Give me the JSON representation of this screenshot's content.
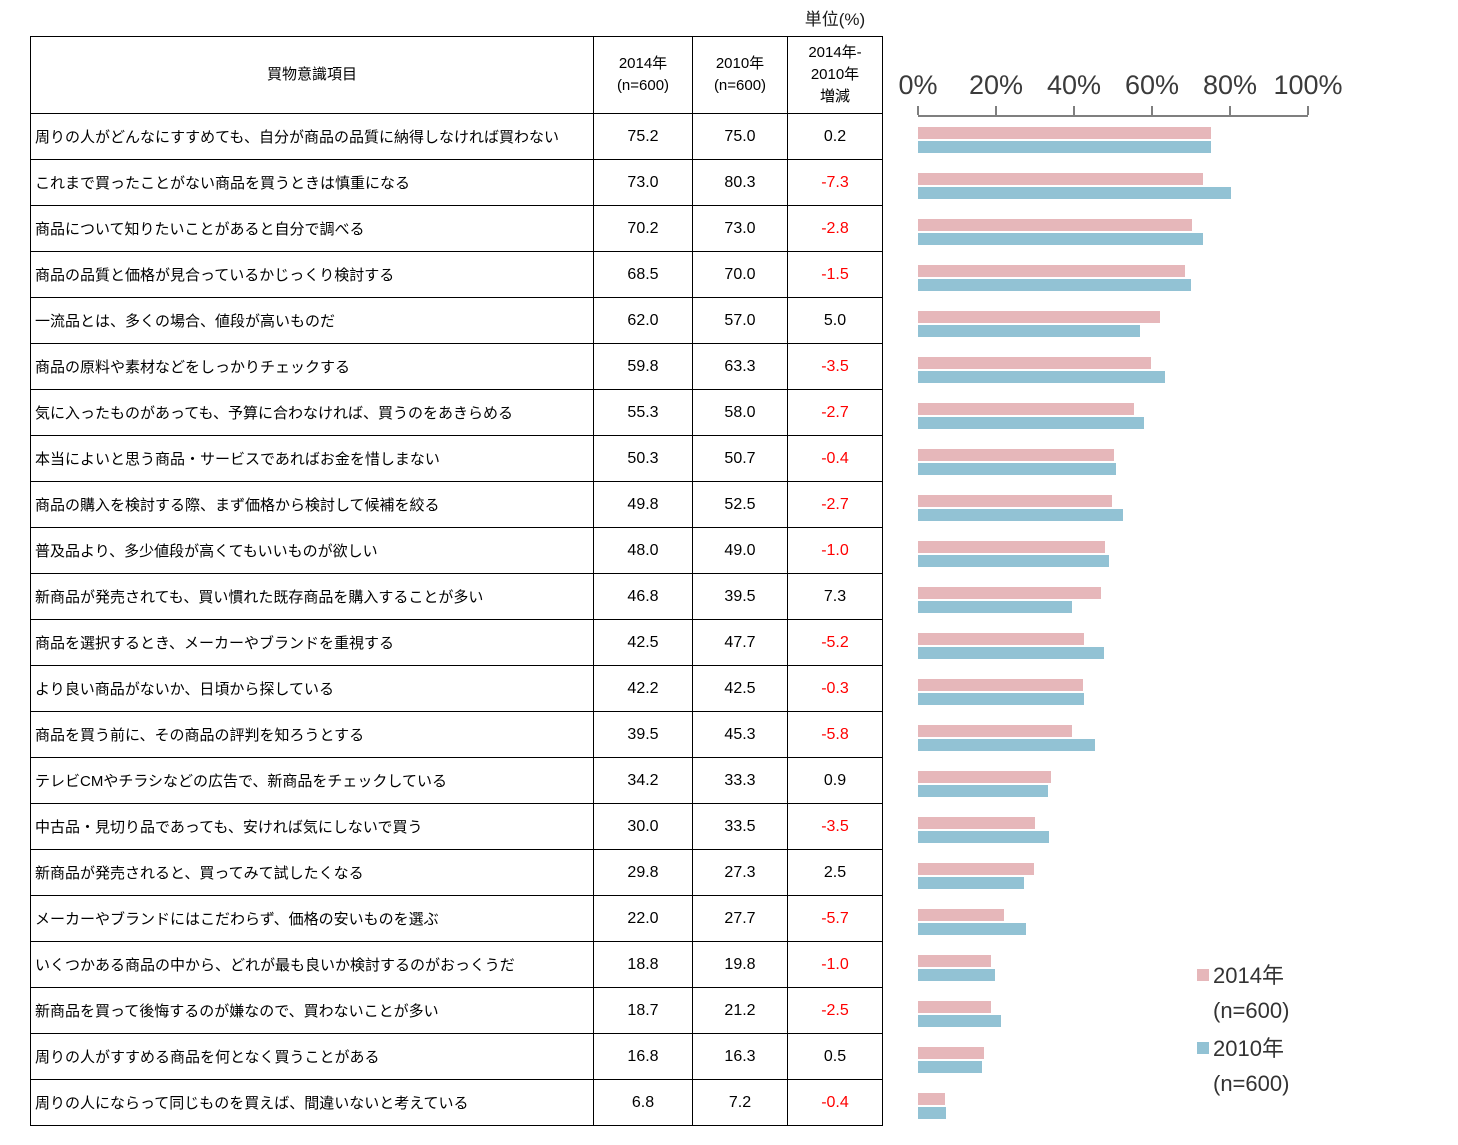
{
  "unit_label": "単位(%)",
  "table": {
    "header": {
      "item": "買物意識項目",
      "col2014_line1": "2014年",
      "col2014_line2": "(n=600)",
      "col2010_line1": "2010年",
      "col2010_line2": "(n=600)",
      "diff_line1": "2014年-",
      "diff_line2": "2010年",
      "diff_line3": "増減"
    },
    "rows": [
      {
        "item": "周りの人がどんなにすすめても、自分が商品の品質に納得しなければ買わない",
        "v2014": "75.2",
        "v2010": "75.0",
        "diff": "0.2"
      },
      {
        "item": "これまで買ったことがない商品を買うときは慎重になる",
        "v2014": "73.0",
        "v2010": "80.3",
        "diff": "-7.3"
      },
      {
        "item": "商品について知りたいことがあると自分で調べる",
        "v2014": "70.2",
        "v2010": "73.0",
        "diff": "-2.8"
      },
      {
        "item": "商品の品質と価格が見合っているかじっくり検討する",
        "v2014": "68.5",
        "v2010": "70.0",
        "diff": "-1.5"
      },
      {
        "item": "一流品とは、多くの場合、値段が高いものだ",
        "v2014": "62.0",
        "v2010": "57.0",
        "diff": "5.0"
      },
      {
        "item": "商品の原料や素材などをしっかりチェックする",
        "v2014": "59.8",
        "v2010": "63.3",
        "diff": "-3.5"
      },
      {
        "item": "気に入ったものがあっても、予算に合わなければ、買うのをあきらめる",
        "v2014": "55.3",
        "v2010": "58.0",
        "diff": "-2.7"
      },
      {
        "item": "本当によいと思う商品・サービスであればお金を惜しまない",
        "v2014": "50.3",
        "v2010": "50.7",
        "diff": "-0.4"
      },
      {
        "item": "商品の購入を検討する際、まず価格から検討して候補を絞る",
        "v2014": "49.8",
        "v2010": "52.5",
        "diff": "-2.7"
      },
      {
        "item": "普及品より、多少値段が高くてもいいものが欲しい",
        "v2014": "48.0",
        "v2010": "49.0",
        "diff": "-1.0"
      },
      {
        "item": "新商品が発売されても、買い慣れた既存商品を購入することが多い",
        "v2014": "46.8",
        "v2010": "39.5",
        "diff": "7.3"
      },
      {
        "item": "商品を選択するとき、メーカーやブランドを重視する",
        "v2014": "42.5",
        "v2010": "47.7",
        "diff": "-5.2"
      },
      {
        "item": "より良い商品がないか、日頃から探している",
        "v2014": "42.2",
        "v2010": "42.5",
        "diff": "-0.3"
      },
      {
        "item": "商品を買う前に、その商品の評判を知ろうとする",
        "v2014": "39.5",
        "v2010": "45.3",
        "diff": "-5.8"
      },
      {
        "item": "テレビCMやチラシなどの広告で、新商品をチェックしている",
        "v2014": "34.2",
        "v2010": "33.3",
        "diff": "0.9"
      },
      {
        "item": "中古品・見切り品であっても、安ければ気にしないで買う",
        "v2014": "30.0",
        "v2010": "33.5",
        "diff": "-3.5"
      },
      {
        "item": "新商品が発売されると、買ってみて試したくなる",
        "v2014": "29.8",
        "v2010": "27.3",
        "diff": "2.5"
      },
      {
        "item": "メーカーやブランドにはこだわらず、価格の安いものを選ぶ",
        "v2014": "22.0",
        "v2010": "27.7",
        "diff": "-5.7"
      },
      {
        "item": "いくつかある商品の中から、どれが最も良いか検討するのがおっくうだ",
        "v2014": "18.8",
        "v2010": "19.8",
        "diff": "-1.0"
      },
      {
        "item": "新商品を買って後悔するのが嫌なので、買わないことが多い",
        "v2014": "18.7",
        "v2010": "21.2",
        "diff": "-2.5"
      },
      {
        "item": "周りの人がすすめる商品を何となく買うことがある",
        "v2014": "16.8",
        "v2010": "16.3",
        "diff": "0.5"
      },
      {
        "item": "周りの人にならって同じものを買えば、間違いないと考えている",
        "v2014": "6.8",
        "v2010": "7.2",
        "diff": "-0.4"
      }
    ]
  },
  "chart": {
    "axis_ticks": [
      "0%",
      "20%",
      "40%",
      "60%",
      "80%",
      "100%"
    ],
    "colors": {
      "series2014": "#E6B7BA",
      "series2010": "#92C2D4",
      "axis": "#7F7F7F",
      "negative": "#FF0000"
    },
    "legend": [
      {
        "label": "2014年",
        "sublabel": "(n=600)",
        "color_key": "series2014"
      },
      {
        "label": "2010年",
        "sublabel": "(n=600)",
        "color_key": "series2010"
      }
    ]
  },
  "chart_data": {
    "type": "bar",
    "orientation": "horizontal",
    "unit": "%",
    "title": "単位(%)",
    "categories": [
      "周りの人がどんなにすすめても、自分が商品の品質に納得しなければ買わない",
      "これまで買ったことがない商品を買うときは慎重になる",
      "商品について知りたいことがあると自分で調べる",
      "商品の品質と価格が見合っているかじっくり検討する",
      "一流品とは、多くの場合、値段が高いものだ",
      "商品の原料や素材などをしっかりチェックする",
      "気に入ったものがあっても、予算に合わなければ、買うのをあきらめる",
      "本当によいと思う商品・サービスであればお金を惜しまない",
      "商品の購入を検討する際、まず価格から検討して候補を絞る",
      "普及品より、多少値段が高くてもいいものが欲しい",
      "新商品が発売されても、買い慣れた既存商品を購入することが多い",
      "商品を選択するとき、メーカーやブランドを重視する",
      "より良い商品がないか、日頃から探している",
      "商品を買う前に、その商品の評判を知ろうとする",
      "テレビCMやチラシなどの広告で、新商品をチェックしている",
      "中古品・見切り品であっても、安ければ気にしないで買う",
      "新商品が発売されると、買ってみて試したくなる",
      "メーカーやブランドにはこだわらず、価格の安いものを選ぶ",
      "いくつかある商品の中から、どれが最も良いか検討するのがおっくうだ",
      "新商品を買って後悔するのが嫌なので、買わないことが多い",
      "周りの人がすすめる商品を何となく買うことがある",
      "周りの人にならって同じものを買えば、間違いないと考えている"
    ],
    "series": [
      {
        "name": "2014年 (n=600)",
        "values": [
          75.2,
          73.0,
          70.2,
          68.5,
          62.0,
          59.8,
          55.3,
          50.3,
          49.8,
          48.0,
          46.8,
          42.5,
          42.2,
          39.5,
          34.2,
          30.0,
          29.8,
          22.0,
          18.8,
          18.7,
          16.8,
          6.8
        ]
      },
      {
        "name": "2010年 (n=600)",
        "values": [
          75.0,
          80.3,
          73.0,
          70.0,
          57.0,
          63.3,
          58.0,
          50.7,
          52.5,
          49.0,
          39.5,
          47.7,
          42.5,
          45.3,
          33.3,
          33.5,
          27.3,
          27.7,
          19.8,
          21.2,
          16.3,
          7.2
        ]
      }
    ],
    "diff_2014_minus_2010": [
      0.2,
      -7.3,
      -2.8,
      -1.5,
      5.0,
      -3.5,
      -2.7,
      -0.4,
      -2.7,
      -1.0,
      7.3,
      -5.2,
      -0.3,
      -5.8,
      0.9,
      -3.5,
      2.5,
      -5.7,
      -1.0,
      -2.5,
      0.5,
      -0.4
    ],
    "xlim": [
      0,
      100
    ],
    "x_ticks": [
      "0%",
      "20%",
      "40%",
      "60%",
      "80%",
      "100%"
    ],
    "grid": false,
    "legend_position": "bottom-right"
  }
}
